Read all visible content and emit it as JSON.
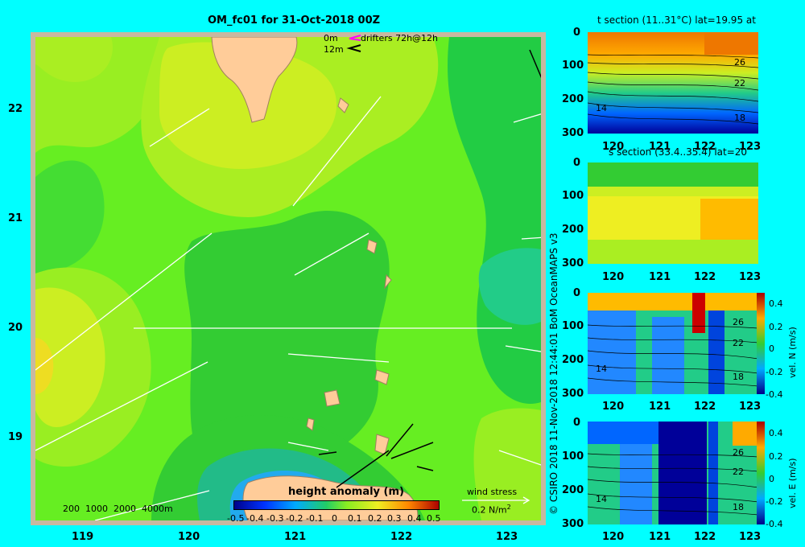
{
  "main_map": {
    "title": "OM_fc01 for 31-Oct-2018 00Z",
    "drifter_legend": {
      "depth_0": "0m",
      "depth_12": "12m",
      "label": "drifters 72h@12h",
      "colors": {
        "depth_0": "#ff00ff",
        "depth_12": "#000000"
      }
    },
    "lat_ticks": [
      "22",
      "21",
      "20",
      "19"
    ],
    "lon_ticks": [
      "119",
      "120",
      "121",
      "122",
      "123"
    ],
    "bathymetry_contours": "200  1000  2000  4000m",
    "colorbar": {
      "title": "height anomaly (m)",
      "labels": [
        "-0.5",
        "-0.4",
        "-0.3",
        "-0.2",
        "-0.1",
        "0",
        "0.1",
        "0.2",
        "0.3",
        "0.4",
        "0.5"
      ]
    },
    "wind_stress": {
      "label": "wind stress",
      "scale": "0.2 N/m",
      "exponent": "2"
    }
  },
  "sections": [
    {
      "title": "t section (11..31°C) lat=19.95 at",
      "y_ticks": [
        "0",
        "100",
        "200",
        "300"
      ],
      "x_ticks": [
        "120",
        "121",
        "122",
        "123"
      ],
      "contour_labels": [
        "26",
        "22",
        "14",
        "18"
      ]
    },
    {
      "title": "s section (33.4..35.4) lat=20",
      "y_ticks": [
        "0",
        "100",
        "200",
        "300"
      ],
      "x_ticks": [
        "120",
        "121",
        "122",
        "123"
      ],
      "contour_labels": []
    },
    {
      "title": "",
      "y_ticks": [
        "0",
        "100",
        "200",
        "300"
      ],
      "x_ticks": [
        "120",
        "121",
        "122",
        "123"
      ],
      "contour_labels": [
        "26",
        "22",
        "14",
        "18"
      ],
      "colorbar": {
        "label": "vel. N (m/s)",
        "ticks": [
          "0.4",
          "0.2",
          "0",
          "-0.2",
          "-0.4"
        ]
      }
    },
    {
      "title": "",
      "y_ticks": [
        "0",
        "100",
        "200",
        "300"
      ],
      "x_ticks": [
        "120",
        "121",
        "122",
        "123"
      ],
      "contour_labels": [
        "26",
        "22",
        "14",
        "18"
      ],
      "colorbar": {
        "label": "vel. E (m/s)",
        "ticks": [
          "0.4",
          "0.2",
          "0",
          "-0.2",
          "-0.4"
        ]
      }
    }
  ],
  "credit": "© CSIRO 2018  11-Nov-2018 12:44:01 BoM OceanMAPS v3",
  "colors": {
    "background": "#00ffff",
    "land": "#ffcc99",
    "frame": "#c8b8a0"
  }
}
